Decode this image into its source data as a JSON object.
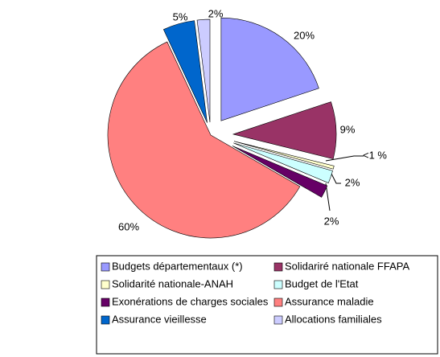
{
  "chart_data": {
    "type": "pie",
    "categories": [
      "Budgets départementaux (*)",
      "Solidariré nationale FFAPA",
      "Solidarité nationale-ANAH",
      "Budget de l'Etat",
      "Exonérations de charges sociales",
      "Assurance maladie",
      "Assurance vieillesse",
      "Allocations familiales"
    ],
    "values": [
      20,
      9,
      0.5,
      2,
      2,
      60,
      5,
      2
    ],
    "value_labels": [
      "20%",
      "9%",
      "<1 %",
      "2%",
      "2%",
      "60%",
      "5%",
      "2%"
    ],
    "colors": [
      "#9999ff",
      "#993366",
      "#ffffcc",
      "#ccffff",
      "#660066",
      "#ff8080",
      "#0066cc",
      "#ccccff"
    ]
  }
}
